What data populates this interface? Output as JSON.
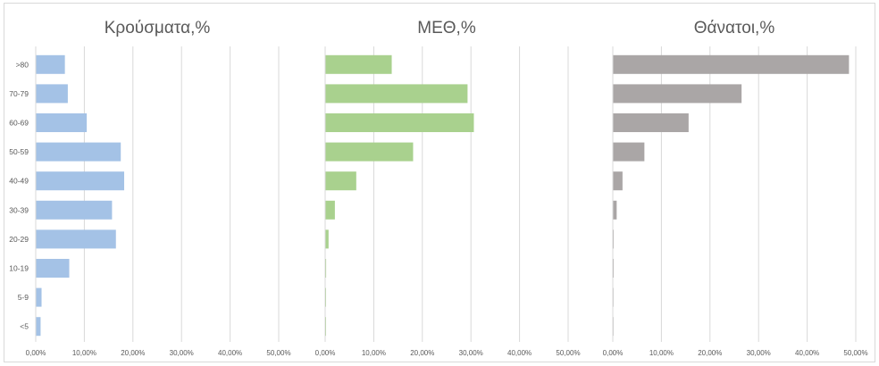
{
  "chart_data": {
    "type": "bar",
    "orientation": "horizontal",
    "categories": [
      ">80",
      "70-79",
      "60-69",
      "50-59",
      "40-49",
      "30-39",
      "20-29",
      "10-19",
      "5-9",
      "<5"
    ],
    "grid": true,
    "legend": "none",
    "panels": [
      {
        "title": "Κρούσματα,%",
        "color": "#a4c2e6",
        "xlim": [
          0,
          0.5
        ],
        "ticks": [
          "0,00%",
          "10,00%",
          "20,00%",
          "30,00%",
          "40,00%",
          "50,00%"
        ],
        "values": [
          0.06,
          0.066,
          0.105,
          0.175,
          0.182,
          0.157,
          0.165,
          0.069,
          0.012,
          0.01
        ]
      },
      {
        "title": "ΜΕΘ,%",
        "color": "#a9d18e",
        "xlim": [
          0,
          0.5
        ],
        "ticks": [
          "0,00%",
          "10,00%",
          "20,00%",
          "30,00%",
          "40,00%",
          "50,00%"
        ],
        "values": [
          0.137,
          0.293,
          0.306,
          0.181,
          0.064,
          0.02,
          0.007,
          0.002,
          0.001,
          0.001
        ]
      },
      {
        "title": "Θάνατοι,%",
        "color": "#aaa6a6",
        "xlim": [
          0,
          0.5
        ],
        "ticks": [
          "0,00%",
          "10,00%",
          "20,00%",
          "30,00%",
          "40,00%",
          "50,00%"
        ],
        "values": [
          0.486,
          0.265,
          0.156,
          0.065,
          0.02,
          0.008,
          0.001,
          0.0005,
          0.0,
          0.0
        ]
      }
    ]
  }
}
